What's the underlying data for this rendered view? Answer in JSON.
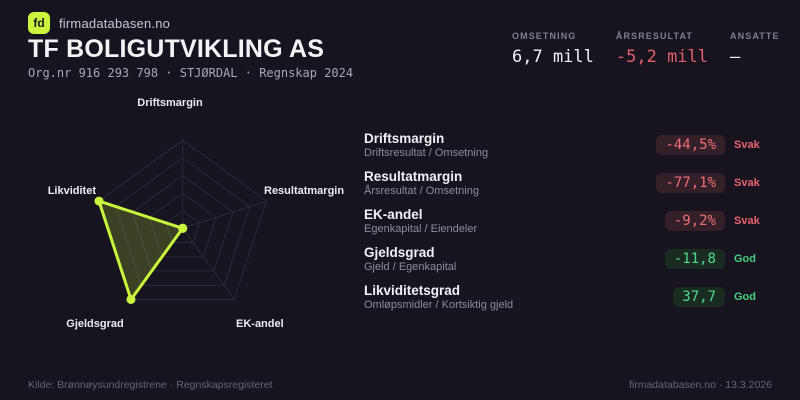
{
  "brand": {
    "logo_text": "fd",
    "name": "firmadatabasen.no"
  },
  "header": {
    "title": "TF BOLIGUTVIKLING AS",
    "org_line": "Org.nr 916 293 798  ·  STJØRDAL  ·  Regnskap 2024"
  },
  "stats": [
    {
      "label": "OMSETNING",
      "value": "6,7 mill",
      "tone": "normal"
    },
    {
      "label": "ÅRSRESULTAT",
      "value": "-5,2 mill",
      "tone": "negative"
    },
    {
      "label": "ANSATTE",
      "value": "–",
      "tone": "normal"
    }
  ],
  "chart_data": {
    "type": "radar",
    "categories": [
      "Driftsmargin",
      "Resultatmargin",
      "EK-andel",
      "Gjeldsgrad",
      "Likviditet"
    ],
    "values": [
      0,
      0,
      0,
      100,
      100
    ],
    "max": 100,
    "rings": 5,
    "legend_position": "none",
    "grid": true
  },
  "metrics": [
    {
      "name": "Driftsmargin",
      "formula": "Driftsresultat / Omsetning",
      "value": "-44,5%",
      "status": "Svak",
      "tone": "bad"
    },
    {
      "name": "Resultatmargin",
      "formula": "Årsresultat / Omsetning",
      "value": "-77,1%",
      "status": "Svak",
      "tone": "bad"
    },
    {
      "name": "EK-andel",
      "formula": "Egenkapital / Eiendeler",
      "value": "-9,2%",
      "status": "Svak",
      "tone": "bad"
    },
    {
      "name": "Gjeldsgrad",
      "formula": "Gjeld / Egenkapital",
      "value": "-11,8",
      "status": "God",
      "tone": "good"
    },
    {
      "name": "Likviditetsgrad",
      "formula": "Omløpsmidler / Kortsiktig gjeld",
      "value": "37,7",
      "status": "God",
      "tone": "good"
    }
  ],
  "footer": {
    "source": "Kilde: Brønnøysundregistrene · Regnskapsregisteret",
    "site": "firmadatabasen.no · 13.3.2026"
  },
  "colors": {
    "background": "#171420",
    "accent": "#c9f53c",
    "radar_fill": "rgba(201,245,60,0.20)",
    "grid": "#2b2936",
    "negative": "#e2606b",
    "positive": "#4fdd8d",
    "pill_bad_bg": "#342028",
    "pill_good_bg": "#1a2b22"
  }
}
